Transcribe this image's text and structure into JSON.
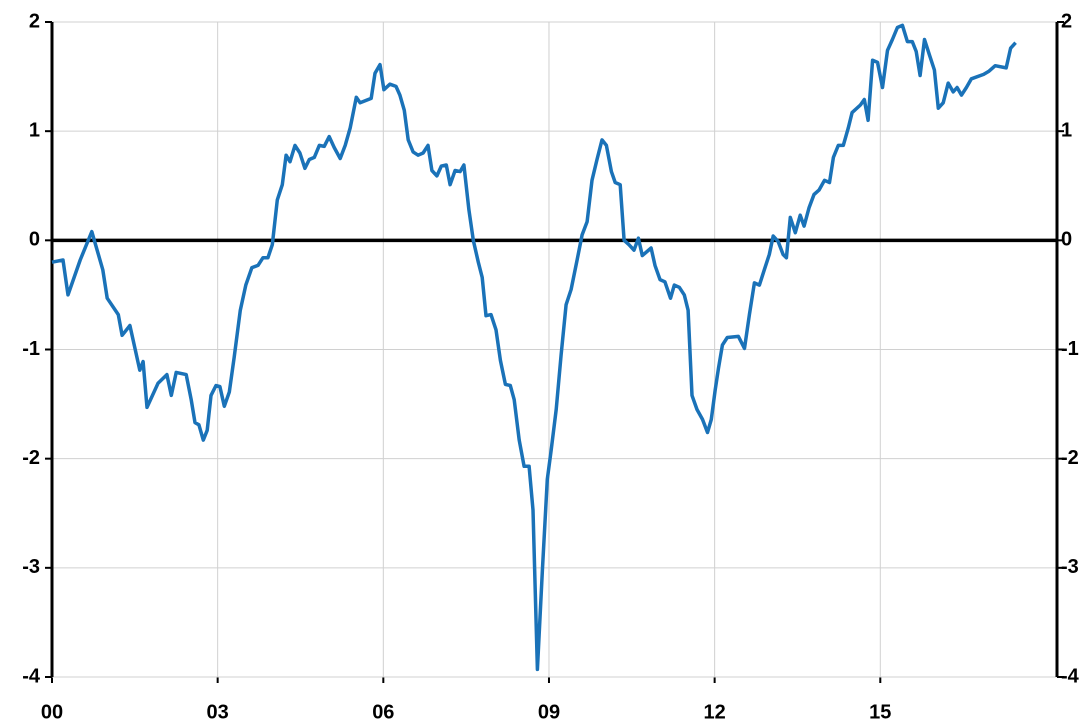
{
  "chart_data": {
    "type": "line",
    "x": [
      2000.0,
      2000.2,
      2000.29,
      2000.51,
      2000.72,
      2000.92,
      2001.0,
      2001.2,
      2001.27,
      2001.41,
      2001.59,
      2001.65,
      2001.72,
      2001.92,
      2002.08,
      2002.16,
      2002.25,
      2002.43,
      2002.52,
      2002.59,
      2002.66,
      2002.74,
      2002.81,
      2002.88,
      2002.97,
      2003.04,
      2003.12,
      2003.21,
      2003.3,
      2003.41,
      2003.51,
      2003.62,
      2003.73,
      2003.82,
      2003.91,
      2003.99,
      2004.08,
      2004.17,
      2004.24,
      2004.31,
      2004.4,
      2004.49,
      2004.58,
      2004.66,
      2004.75,
      2004.84,
      2004.93,
      2005.02,
      2005.11,
      2005.22,
      2005.31,
      2005.4,
      2005.51,
      2005.58,
      2005.78,
      2005.85,
      2005.94,
      2006.01,
      2006.12,
      2006.23,
      2006.3,
      2006.38,
      2006.45,
      2006.54,
      2006.63,
      2006.72,
      2006.81,
      2006.88,
      2006.97,
      2007.05,
      2007.14,
      2007.21,
      2007.3,
      2007.39,
      2007.46,
      2007.55,
      2007.63,
      2007.72,
      2007.79,
      2007.86,
      2007.95,
      2008.04,
      2008.12,
      2008.21,
      2008.3,
      2008.37,
      2008.46,
      2008.55,
      2008.64,
      2008.71,
      2008.79,
      2008.88,
      2008.97,
      2009.04,
      2009.13,
      2009.22,
      2009.31,
      2009.4,
      2009.51,
      2009.6,
      2009.69,
      2009.78,
      2009.87,
      2009.96,
      2010.04,
      2010.13,
      2010.2,
      2010.29,
      2010.36,
      2010.45,
      2010.54,
      2010.62,
      2010.69,
      2010.85,
      2010.92,
      2011.01,
      2011.1,
      2011.2,
      2011.27,
      2011.36,
      2011.45,
      2011.52,
      2011.59,
      2011.68,
      2011.78,
      2011.87,
      2011.94,
      2012.01,
      2012.07,
      2012.14,
      2012.23,
      2012.43,
      2012.54,
      2012.63,
      2012.72,
      2012.81,
      2012.9,
      2012.99,
      2013.06,
      2013.15,
      2013.24,
      2013.3,
      2013.37,
      2013.46,
      2013.55,
      2013.62,
      2013.71,
      2013.8,
      2013.89,
      2013.99,
      2014.08,
      2014.15,
      2014.24,
      2014.33,
      2014.42,
      2014.49,
      2014.64,
      2014.71,
      2014.78,
      2014.86,
      2014.95,
      2015.04,
      2015.13,
      2015.22,
      2015.31,
      2015.4,
      2015.49,
      2015.58,
      2015.65,
      2015.72,
      2015.8,
      2015.89,
      2015.98,
      2016.05,
      2016.14,
      2016.23,
      2016.32,
      2016.39,
      2016.47,
      2016.56,
      2016.65,
      2016.87,
      2016.97,
      2017.08,
      2017.28,
      2017.36,
      2017.45
    ],
    "series": [
      {
        "color": "#1a72b8",
        "values": [
          -0.2,
          -0.18,
          -0.5,
          -0.18,
          0.08,
          -0.27,
          -0.53,
          -0.68,
          -0.87,
          -0.78,
          -1.19,
          -1.11,
          -1.53,
          -1.31,
          -1.23,
          -1.42,
          -1.21,
          -1.23,
          -1.46,
          -1.67,
          -1.69,
          -1.83,
          -1.74,
          -1.42,
          -1.33,
          -1.34,
          -1.52,
          -1.39,
          -1.07,
          -0.64,
          -0.41,
          -0.25,
          -0.23,
          -0.16,
          -0.16,
          -0.04,
          0.37,
          0.51,
          0.78,
          0.72,
          0.87,
          0.8,
          0.66,
          0.74,
          0.76,
          0.87,
          0.86,
          0.95,
          0.85,
          0.75,
          0.87,
          1.03,
          1.31,
          1.26,
          1.3,
          1.53,
          1.61,
          1.38,
          1.43,
          1.41,
          1.33,
          1.19,
          0.92,
          0.81,
          0.78,
          0.8,
          0.87,
          0.64,
          0.59,
          0.68,
          0.69,
          0.51,
          0.64,
          0.63,
          0.69,
          0.28,
          0.0,
          -0.2,
          -0.34,
          -0.69,
          -0.68,
          -0.82,
          -1.1,
          -1.32,
          -1.33,
          -1.46,
          -1.83,
          -2.07,
          -2.07,
          -2.47,
          -3.93,
          -3.02,
          -2.19,
          -1.92,
          -1.55,
          -1.05,
          -0.59,
          -0.45,
          -0.18,
          0.05,
          0.17,
          0.55,
          0.74,
          0.92,
          0.87,
          0.63,
          0.53,
          0.51,
          0.0,
          -0.04,
          -0.09,
          0.02,
          -0.14,
          -0.07,
          -0.23,
          -0.36,
          -0.38,
          -0.53,
          -0.41,
          -0.43,
          -0.5,
          -0.64,
          -1.42,
          -1.55,
          -1.64,
          -1.76,
          -1.64,
          -1.37,
          -1.17,
          -0.96,
          -0.89,
          -0.88,
          -0.99,
          -0.68,
          -0.39,
          -0.41,
          -0.27,
          -0.13,
          0.04,
          -0.01,
          -0.13,
          -0.16,
          0.21,
          0.07,
          0.23,
          0.13,
          0.3,
          0.42,
          0.46,
          0.55,
          0.53,
          0.76,
          0.87,
          0.87,
          1.03,
          1.17,
          1.24,
          1.29,
          1.1,
          1.65,
          1.63,
          1.4,
          1.74,
          1.84,
          1.95,
          1.97,
          1.82,
          1.82,
          1.73,
          1.51,
          1.84,
          1.7,
          1.56,
          1.21,
          1.26,
          1.44,
          1.36,
          1.4,
          1.33,
          1.4,
          1.48,
          1.52,
          1.55,
          1.6,
          1.58,
          1.76,
          1.81
        ]
      }
    ],
    "xlim": [
      2000,
      2018.2
    ],
    "xticks": [
      {
        "value": 2000,
        "label": "00"
      },
      {
        "value": 2003,
        "label": "03"
      },
      {
        "value": 2006,
        "label": "06"
      },
      {
        "value": 2009,
        "label": "09"
      },
      {
        "value": 2012,
        "label": "12"
      },
      {
        "value": 2015,
        "label": "15"
      }
    ],
    "ylim": [
      -4,
      2
    ],
    "yticks": [
      -4,
      -3,
      -2,
      -1,
      0,
      1,
      2
    ],
    "y2lim": [
      -4,
      2
    ],
    "y2ticks": [
      -4,
      -3,
      -2,
      -1,
      0,
      1,
      2
    ],
    "grid": true
  }
}
